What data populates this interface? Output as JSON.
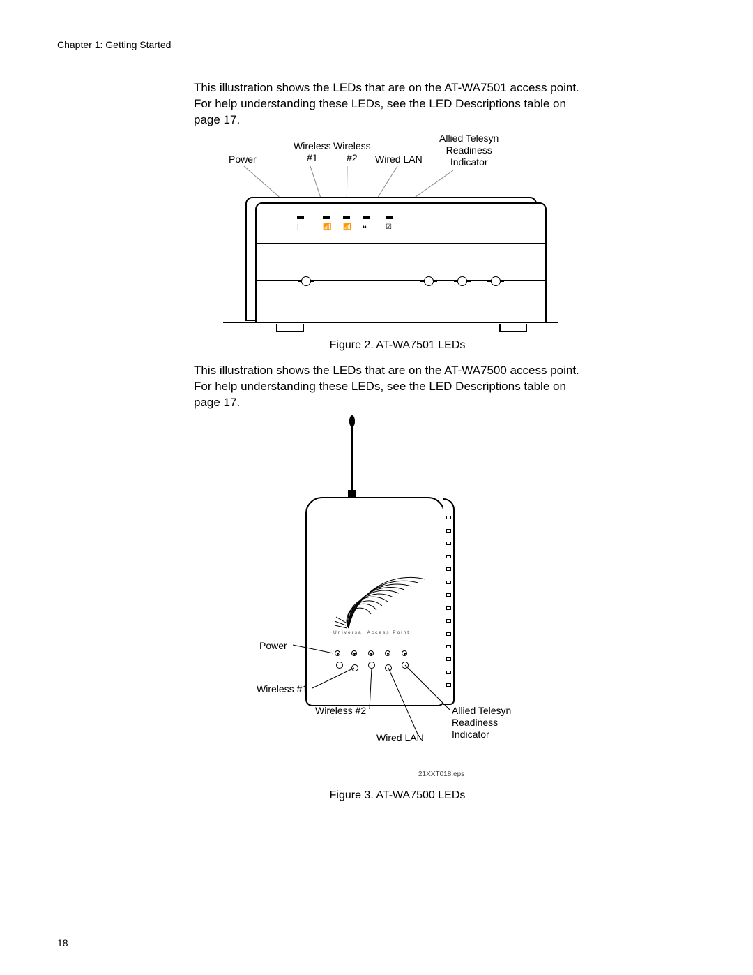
{
  "header": "Chapter 1: Getting Started",
  "pageNumber": "18",
  "para1": "This illustration shows the LEDs that are on the AT-WA7501 access point. For help understanding these LEDs, see the LED Descriptions table on page 17.",
  "para2": "This illustration shows the LEDs that are on the AT-WA7500 access point. For help understanding these LEDs, see the LED Descriptions table on page 17.",
  "fig1": {
    "caption": "Figure 2. AT-WA7501 LEDs",
    "labels": {
      "power": "Power",
      "w1_line1": "Wireless",
      "w1_line2": "#1",
      "w2_line1": "Wireless",
      "w2_line2": "#2",
      "wired": "Wired LAN",
      "ari_line1": "Allied Telesyn",
      "ari_line2": "Readiness",
      "ari_line3": "Indicator"
    },
    "icons": {
      "i1": "|",
      "i2": "📶",
      "i3": "📶",
      "i4": "⬪⬪",
      "i5": "☑"
    }
  },
  "fig2": {
    "caption": "Figure 3. AT-WA7500 LEDs",
    "uapText": "Universal Access Point",
    "eps": "21XXT018.eps",
    "labels": {
      "power": "Power",
      "w1": "Wireless #1",
      "w2": "Wireless #2",
      "wired": "Wired LAN",
      "ari_line1": "Allied Telesyn",
      "ari_line2": "Readiness",
      "ari_line3": "Indicator"
    },
    "ventCount": 14
  }
}
